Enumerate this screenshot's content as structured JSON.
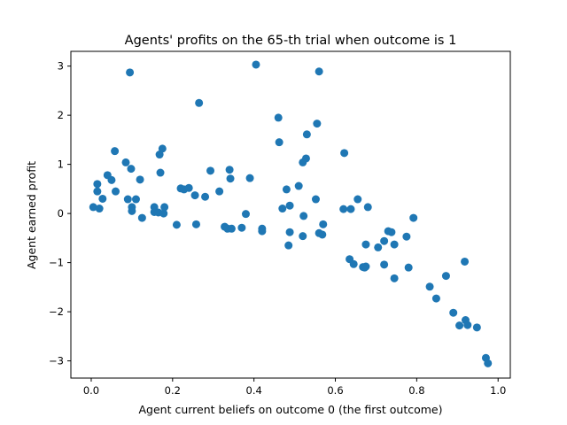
{
  "chart_data": {
    "type": "scatter",
    "title": "Agents' profits on the 65-th trial when outcome is 1",
    "xlabel": "Agent current beliefs on outcome 0 (the first outcome)",
    "ylabel": "Agent earned profit",
    "xlim": [
      -0.05,
      1.03
    ],
    "ylim": [
      -3.35,
      3.3
    ],
    "xticks": [
      0.0,
      0.2,
      0.4,
      0.6,
      0.8,
      1.0
    ],
    "xtick_labels": [
      "0.0",
      "0.2",
      "0.4",
      "0.6",
      "0.8",
      "1.0"
    ],
    "yticks": [
      -3,
      -2,
      -1,
      0,
      1,
      2,
      3
    ],
    "ytick_labels": [
      "−3",
      "−2",
      "−1",
      "0",
      "1",
      "2",
      "3"
    ],
    "grid": false,
    "marker_color": "#1f77b4",
    "points": [
      [
        0.005,
        0.13
      ],
      [
        0.015,
        0.6
      ],
      [
        0.015,
        0.45
      ],
      [
        0.02,
        0.1
      ],
      [
        0.028,
        0.3
      ],
      [
        0.04,
        0.78
      ],
      [
        0.05,
        0.68
      ],
      [
        0.058,
        1.27
      ],
      [
        0.06,
        0.45
      ],
      [
        0.085,
        1.04
      ],
      [
        0.09,
        0.29
      ],
      [
        0.095,
        2.87
      ],
      [
        0.098,
        0.91
      ],
      [
        0.1,
        0.13
      ],
      [
        0.1,
        0.05
      ],
      [
        0.11,
        0.29
      ],
      [
        0.12,
        0.69
      ],
      [
        0.125,
        -0.09
      ],
      [
        0.155,
        0.13
      ],
      [
        0.155,
        0.03
      ],
      [
        0.165,
        0.02
      ],
      [
        0.168,
        1.2
      ],
      [
        0.17,
        0.83
      ],
      [
        0.175,
        1.32
      ],
      [
        0.178,
        0.0
      ],
      [
        0.18,
        0.13
      ],
      [
        0.21,
        -0.23
      ],
      [
        0.22,
        0.51
      ],
      [
        0.228,
        0.49
      ],
      [
        0.24,
        0.52
      ],
      [
        0.255,
        0.37
      ],
      [
        0.258,
        -0.22
      ],
      [
        0.265,
        2.25
      ],
      [
        0.28,
        0.34
      ],
      [
        0.293,
        0.87
      ],
      [
        0.315,
        0.45
      ],
      [
        0.328,
        -0.27
      ],
      [
        0.335,
        -0.31
      ],
      [
        0.34,
        0.89
      ],
      [
        0.342,
        0.71
      ],
      [
        0.345,
        -0.31
      ],
      [
        0.37,
        -0.29
      ],
      [
        0.38,
        -0.01
      ],
      [
        0.39,
        0.72
      ],
      [
        0.405,
        3.03
      ],
      [
        0.42,
        -0.31
      ],
      [
        0.42,
        -0.36
      ],
      [
        0.46,
        1.95
      ],
      [
        0.462,
        1.45
      ],
      [
        0.47,
        0.1
      ],
      [
        0.48,
        0.49
      ],
      [
        0.485,
        -0.65
      ],
      [
        0.488,
        -0.38
      ],
      [
        0.488,
        0.16
      ],
      [
        0.51,
        0.56
      ],
      [
        0.52,
        1.04
      ],
      [
        0.52,
        -0.46
      ],
      [
        0.522,
        -0.05
      ],
      [
        0.528,
        1.12
      ],
      [
        0.53,
        1.61
      ],
      [
        0.552,
        0.29
      ],
      [
        0.555,
        1.83
      ],
      [
        0.56,
        2.89
      ],
      [
        0.56,
        -0.4
      ],
      [
        0.568,
        -0.43
      ],
      [
        0.57,
        -0.22
      ],
      [
        0.62,
        0.09
      ],
      [
        0.622,
        1.23
      ],
      [
        0.635,
        -0.93
      ],
      [
        0.638,
        0.09
      ],
      [
        0.645,
        -1.03
      ],
      [
        0.655,
        0.29
      ],
      [
        0.668,
        -1.09
      ],
      [
        0.672,
        -1.1
      ],
      [
        0.675,
        -1.08
      ],
      [
        0.675,
        -0.63
      ],
      [
        0.68,
        0.13
      ],
      [
        0.705,
        -0.69
      ],
      [
        0.72,
        -0.56
      ],
      [
        0.72,
        -1.04
      ],
      [
        0.73,
        -0.36
      ],
      [
        0.738,
        -0.38
      ],
      [
        0.745,
        -0.63
      ],
      [
        0.745,
        -1.32
      ],
      [
        0.775,
        -0.47
      ],
      [
        0.78,
        -1.1
      ],
      [
        0.792,
        -0.09
      ],
      [
        0.832,
        -1.49
      ],
      [
        0.848,
        -1.73
      ],
      [
        0.872,
        -1.27
      ],
      [
        0.89,
        -2.02
      ],
      [
        0.905,
        -2.28
      ],
      [
        0.918,
        -0.98
      ],
      [
        0.92,
        -2.17
      ],
      [
        0.925,
        -2.27
      ],
      [
        0.948,
        -2.32
      ],
      [
        0.97,
        -2.94
      ],
      [
        0.975,
        -3.05
      ]
    ]
  }
}
